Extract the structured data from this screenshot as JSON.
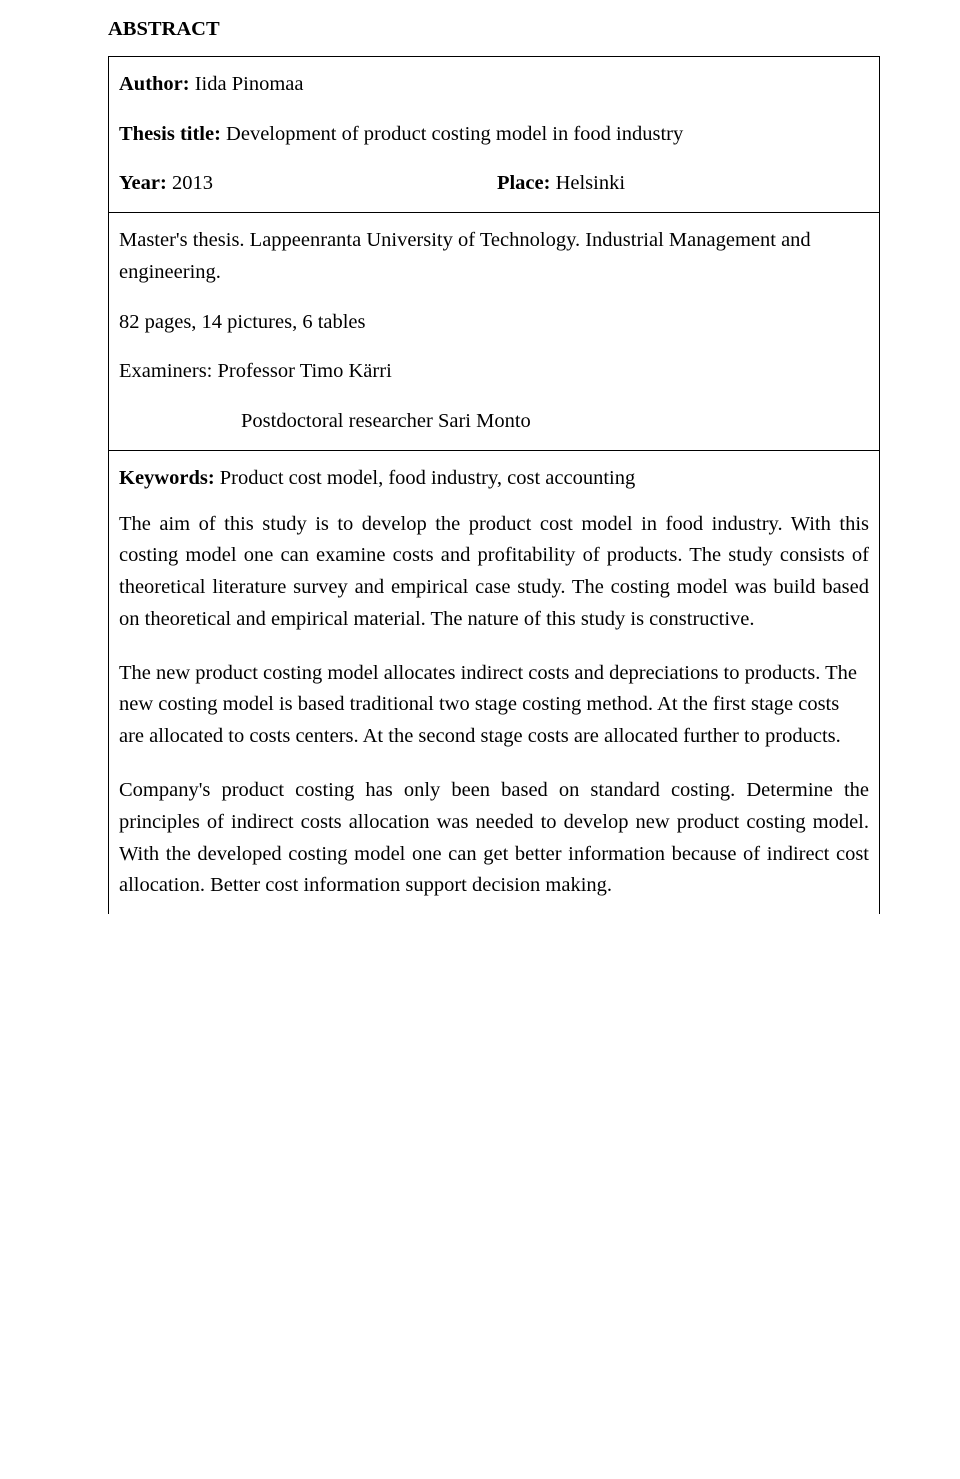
{
  "heading": "ABSTRACT",
  "titlebox": {
    "author_label": "Author:",
    "author_value": "Iida Pinomaa",
    "thesis_label": "Thesis title:",
    "thesis_value": "Development of product costing model in food industry",
    "year_label": "Year:",
    "year_value": "2013",
    "place_label": "Place:",
    "place_value": "Helsinki"
  },
  "details": {
    "degree": "Master's thesis. Lappeenranta University of Technology. Industrial Management and engineering.",
    "extent": "82 pages, 14 pictures,  6 tables",
    "examiners_label": "Examiners:",
    "examiner1": "Professor Timo Kärri",
    "examiner2": "Postdoctoral researcher Sari Monto"
  },
  "body": {
    "keywords_label": "Keywords:",
    "keywords_value": "Product cost model, food industry, cost accounting",
    "p1": "The aim of this study is to develop the product cost model in food industry. With this costing model one can examine costs and profitability of products. The study consists of theoretical literature survey and empirical case study. The costing model was build based on theoretical and empirical material. The nature of this study is constructive.",
    "p2": "The new product costing model allocates indirect costs and depreciations to products. The new costing model is based traditional two stage costing method. At the first stage costs are allocated to costs centers. At the second stage costs are allocated further to products.",
    "p3": "Company's product costing has only been based on standard costing. Determine the principles of indirect costs allocation was needed to develop new product costing model. With the developed costing model one can get better information because of indirect cost allocation. Better cost information support decision making."
  }
}
